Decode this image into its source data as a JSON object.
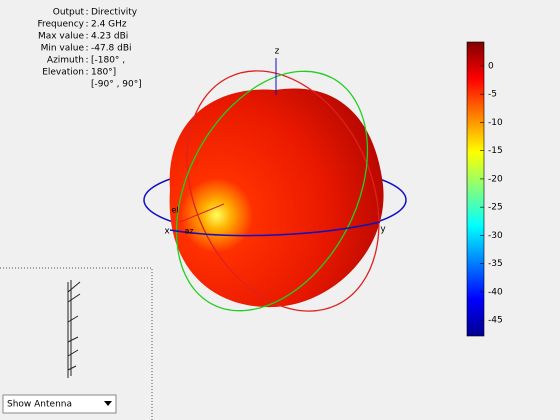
{
  "chart_data": {
    "type": "pattern3d",
    "info": [
      {
        "label": "Output",
        "value": "Directivity"
      },
      {
        "label": "Frequency",
        "value": "2.4 GHz"
      },
      {
        "label": "Max value",
        "value": "4.23 dBi"
      },
      {
        "label": "Min value",
        "value": "-47.8 dBi"
      },
      {
        "label": "Azimuth",
        "value": "[-180° ,"
      },
      {
        "label": "Elevation",
        "value": "180°]"
      },
      {
        "value": "[-90° , 90°]"
      }
    ],
    "axis_labels": {
      "x": "x",
      "y": "y",
      "z": "z",
      "az": "az",
      "el": "el"
    },
    "colorbar": {
      "lim": [
        -47.8,
        4.23
      ],
      "ticks": [
        0,
        -5,
        -10,
        -15,
        -20,
        -25,
        -30,
        -35,
        -40,
        -45
      ]
    },
    "dropdown": "Show Antenna"
  }
}
